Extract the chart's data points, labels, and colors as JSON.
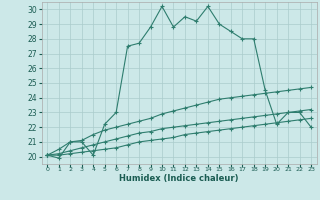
{
  "xlabel": "Humidex (Indice chaleur)",
  "ylabel": "",
  "background_color": "#cce8e8",
  "grid_color": "#aacccc",
  "line_color": "#2e7d6e",
  "xlim": [
    -0.5,
    23.5
  ],
  "ylim": [
    19.5,
    30.5
  ],
  "yticks": [
    20,
    21,
    22,
    23,
    24,
    25,
    26,
    27,
    28,
    29,
    30
  ],
  "xticks": [
    0,
    1,
    2,
    3,
    4,
    5,
    6,
    7,
    8,
    9,
    10,
    11,
    12,
    13,
    14,
    15,
    16,
    17,
    18,
    19,
    20,
    21,
    22,
    23
  ],
  "series": [
    [
      20.1,
      19.9,
      21.0,
      21.0,
      20.1,
      22.2,
      23.0,
      27.5,
      27.7,
      28.8,
      30.2,
      28.8,
      29.5,
      29.2,
      30.2,
      29.0,
      28.5,
      28.0,
      28.0,
      24.5,
      22.2,
      23.0,
      23.0,
      22.0
    ],
    [
      20.1,
      20.5,
      21.0,
      21.1,
      21.5,
      21.8,
      22.0,
      22.2,
      22.4,
      22.6,
      22.9,
      23.1,
      23.3,
      23.5,
      23.7,
      23.9,
      24.0,
      24.1,
      24.2,
      24.3,
      24.4,
      24.5,
      24.6,
      24.7
    ],
    [
      20.1,
      20.2,
      20.4,
      20.6,
      20.8,
      21.0,
      21.2,
      21.4,
      21.6,
      21.7,
      21.9,
      22.0,
      22.1,
      22.2,
      22.3,
      22.4,
      22.5,
      22.6,
      22.7,
      22.8,
      22.9,
      23.0,
      23.1,
      23.2
    ],
    [
      20.1,
      20.1,
      20.2,
      20.3,
      20.4,
      20.5,
      20.6,
      20.8,
      21.0,
      21.1,
      21.2,
      21.3,
      21.5,
      21.6,
      21.7,
      21.8,
      21.9,
      22.0,
      22.1,
      22.2,
      22.3,
      22.4,
      22.5,
      22.6
    ]
  ]
}
